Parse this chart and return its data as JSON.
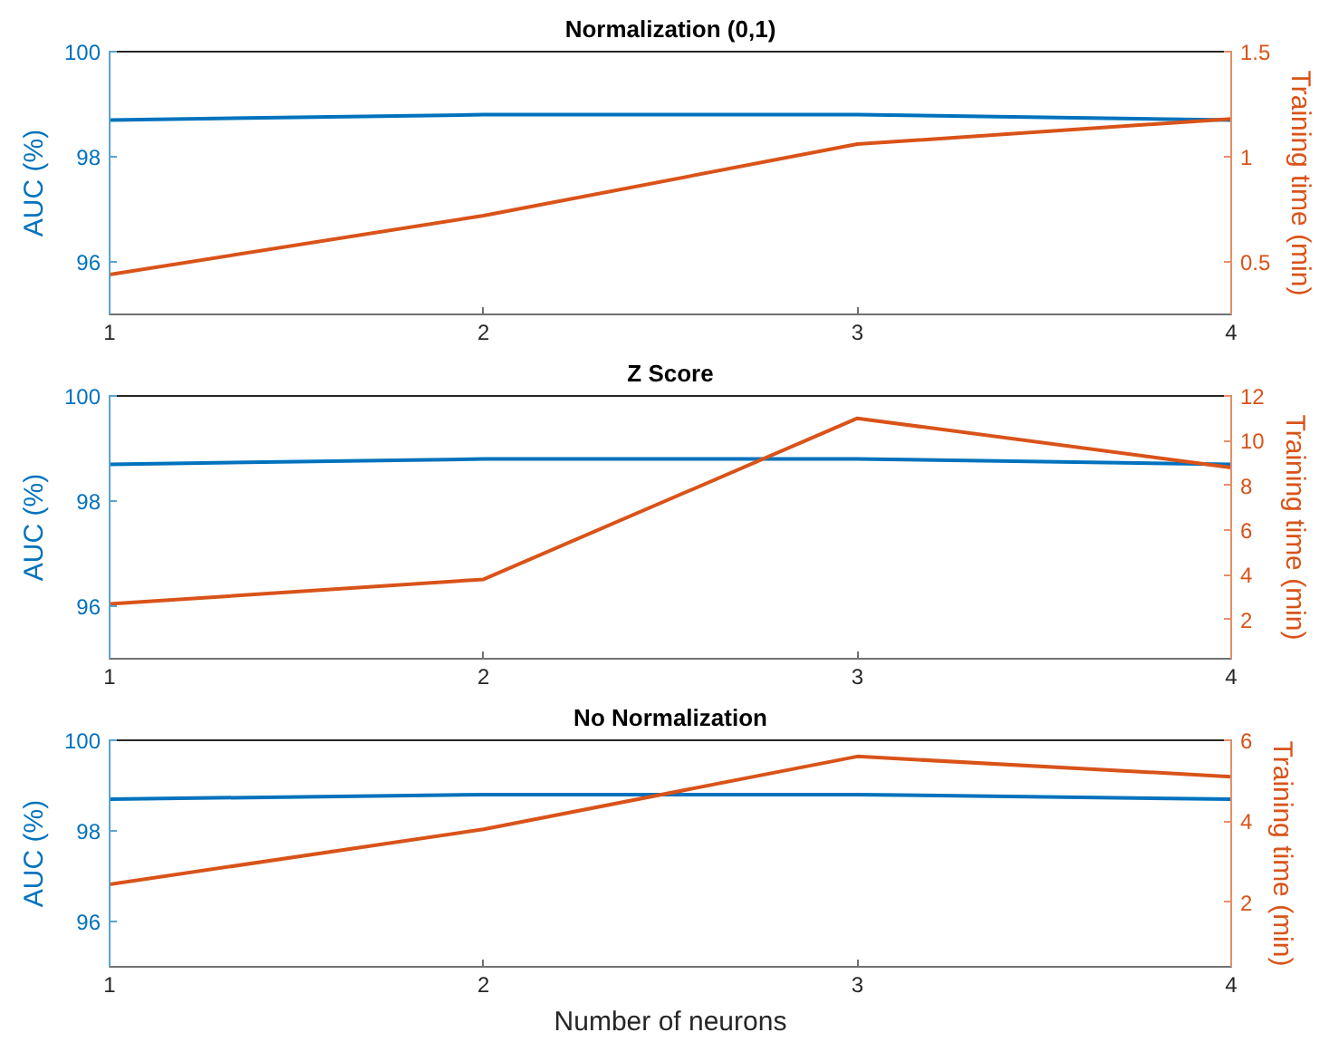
{
  "chart_data": [
    {
      "type": "line",
      "title": "Normalization (0,1)",
      "ylabel": "AUC (%)",
      "y2label": "Training time (min)",
      "x": [
        1,
        2,
        3,
        4
      ],
      "xlim": [
        1,
        4
      ],
      "xticks": [
        1,
        2,
        3,
        4
      ],
      "ylim": [
        95,
        100
      ],
      "yticks": [
        96,
        98,
        100
      ],
      "y2lim": [
        0.25,
        1.5
      ],
      "y2ticks": [
        0.5,
        1,
        1.5
      ],
      "grid": false,
      "series": [
        {
          "color": "#0072bd",
          "values": [
            98.7,
            98.8,
            98.8,
            98.7
          ]
        },
        {
          "color": "#d95319",
          "axis": "y2",
          "values": [
            0.44,
            0.72,
            1.06,
            1.18
          ]
        }
      ]
    },
    {
      "type": "line",
      "title": "Z Score",
      "ylabel": "AUC (%)",
      "y2label": "Training time (min)",
      "x": [
        1,
        2,
        3,
        4
      ],
      "xlim": [
        1,
        4
      ],
      "xticks": [
        1,
        2,
        3,
        4
      ],
      "ylim": [
        95,
        100
      ],
      "yticks": [
        96,
        98,
        100
      ],
      "y2lim": [
        0.25,
        12
      ],
      "y2ticks": [
        2,
        4,
        6,
        8,
        10,
        12
      ],
      "grid": false,
      "series": [
        {
          "color": "#0072bd",
          "values": [
            98.7,
            98.8,
            98.8,
            98.7
          ]
        },
        {
          "color": "#d95319",
          "axis": "y2",
          "values": [
            2.7,
            3.8,
            11,
            8.8
          ]
        }
      ]
    },
    {
      "type": "line",
      "title": "No Normalization",
      "xlabel": "Number of neurons",
      "ylabel": "AUC (%)",
      "y2label": "Training time (min)",
      "x": [
        1,
        2,
        3,
        4
      ],
      "xlim": [
        1,
        4
      ],
      "xticks": [
        1,
        2,
        3,
        4
      ],
      "ylim": [
        95,
        100
      ],
      "yticks": [
        96,
        98,
        100
      ],
      "y2lim": [
        0.4,
        6
      ],
      "y2ticks": [
        2,
        4,
        6
      ],
      "grid": false,
      "series": [
        {
          "color": "#0072bd",
          "values": [
            98.7,
            98.8,
            98.8,
            98.7
          ]
        },
        {
          "color": "#d95319",
          "axis": "y2",
          "values": [
            2.44,
            3.8,
            5.6,
            5.1
          ]
        }
      ]
    }
  ]
}
